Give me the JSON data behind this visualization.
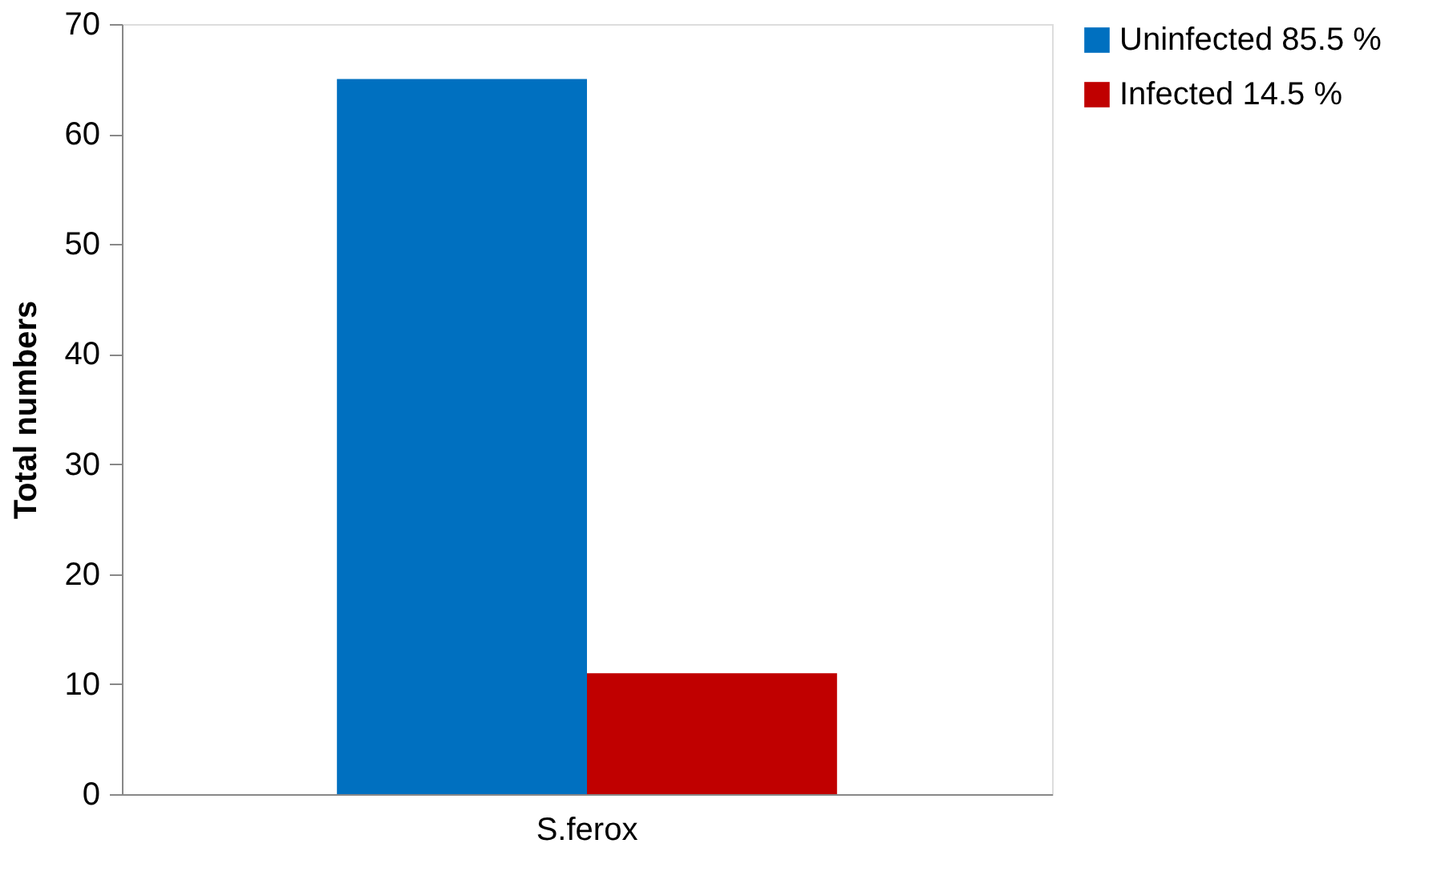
{
  "chart_data": {
    "type": "bar",
    "ylabel": "Total numbers",
    "categories": [
      "S.ferox"
    ],
    "series": [
      {
        "name": "Uninfected 85.5 %",
        "color": "#0070c0",
        "values": [
          65
        ]
      },
      {
        "name": "Infected 14.5 %",
        "color": "#c00000",
        "values": [
          11
        ]
      }
    ],
    "ylim": [
      0,
      70
    ],
    "yticks": [
      0,
      10,
      20,
      30,
      40,
      50,
      60,
      70
    ],
    "grid": false,
    "legend": "right"
  }
}
